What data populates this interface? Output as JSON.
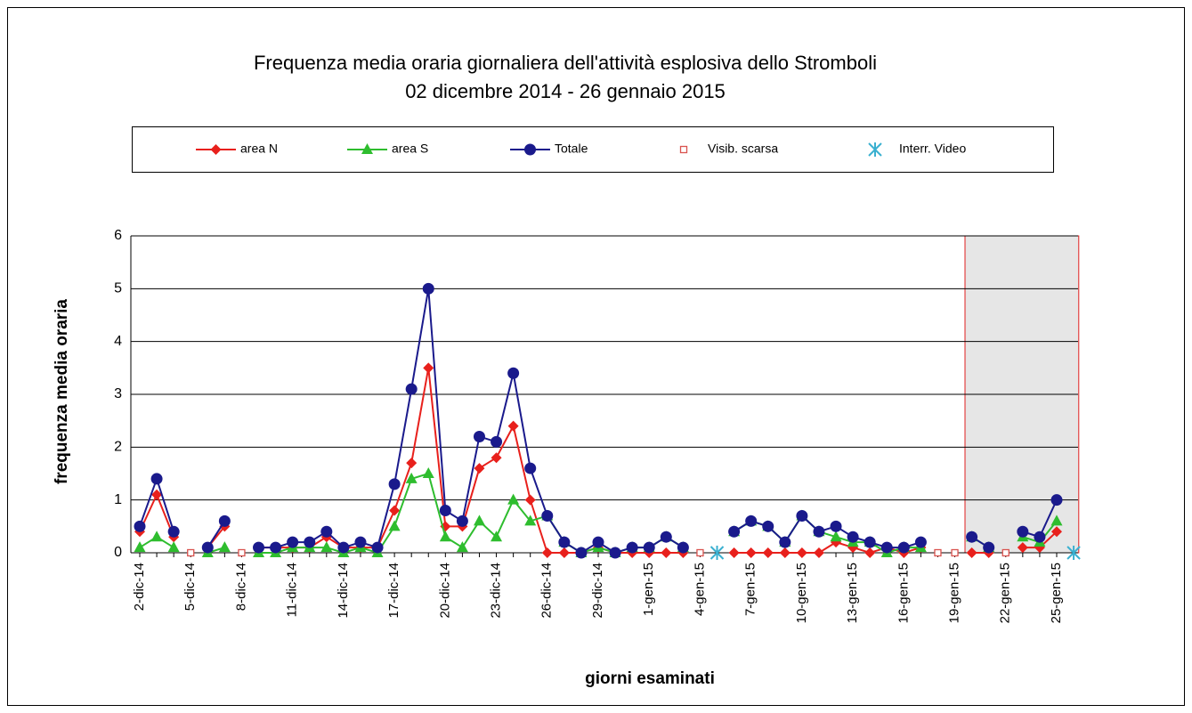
{
  "chart_data": {
    "type": "line",
    "title": "Frequenza media oraria giornaliera dell'attività esplosiva dello Stromboli",
    "subtitle": "02 dicembre 2014 - 26 gennaio 2015",
    "x_label": "giorni esaminati",
    "y_label": "frequenza media oraria",
    "categories": [
      "2-dic-14",
      null,
      null,
      "5-dic-14",
      null,
      null,
      "8-dic-14",
      null,
      null,
      "11-dic-14",
      null,
      null,
      "14-dic-14",
      null,
      null,
      "17-dic-14",
      null,
      null,
      "20-dic-14",
      null,
      null,
      "23-dic-14",
      null,
      null,
      "26-dic-14",
      null,
      null,
      "29-dic-14",
      null,
      null,
      "1-gen-15",
      null,
      null,
      "4-gen-15",
      null,
      null,
      "7-gen-15",
      null,
      null,
      "10-gen-15",
      null,
      null,
      "13-gen-15",
      null,
      null,
      "16-gen-15",
      null,
      null,
      "19-gen-15",
      null,
      null,
      "22-gen-15",
      null,
      null,
      "25-gen-15",
      null
    ],
    "ylim": [
      0,
      6
    ],
    "yticks": [
      0,
      1,
      2,
      3,
      4,
      5,
      6
    ],
    "grid": true,
    "shaded_x": [
      48.6,
      55.3
    ],
    "series": [
      {
        "name": "area N",
        "color": "#e8201c",
        "marker": "diamond",
        "line": true,
        "values": [
          0.4,
          1.1,
          0.3,
          null,
          0.1,
          0.5,
          null,
          0.1,
          0.1,
          0.1,
          0.1,
          0.3,
          0.1,
          0.1,
          0.1,
          0.8,
          1.7,
          3.5,
          0.5,
          0.5,
          1.6,
          1.8,
          2.4,
          1.0,
          0,
          0,
          0,
          0.1,
          0,
          0,
          0,
          0,
          0,
          null,
          null,
          0,
          0,
          0,
          0,
          0,
          0,
          0.2,
          0.1,
          0,
          0.1,
          0,
          0.1,
          null,
          null,
          0,
          0,
          null,
          0.1,
          0.1,
          0.4,
          null
        ]
      },
      {
        "name": "area S",
        "color": "#2ebd2e",
        "marker": "triangle",
        "line": true,
        "values": [
          0.1,
          0.3,
          0.1,
          null,
          0,
          0.1,
          null,
          0,
          0,
          0.1,
          0.1,
          0.1,
          0,
          0.1,
          0,
          0.5,
          1.4,
          1.5,
          0.3,
          0.1,
          0.6,
          0.3,
          1.0,
          0.6,
          0.7,
          0.2,
          0,
          0.1,
          0,
          0.1,
          0.1,
          0.3,
          0.1,
          null,
          null,
          0.4,
          0.6,
          0.5,
          0.2,
          0.7,
          0.4,
          0.3,
          0.2,
          0.2,
          0,
          0.1,
          0.1,
          null,
          null,
          0.3,
          0.1,
          null,
          0.3,
          0.2,
          0.6,
          null
        ]
      },
      {
        "name": "Totale",
        "color": "#1a1a8c",
        "marker": "circle",
        "line": true,
        "values": [
          0.5,
          1.4,
          0.4,
          null,
          0.1,
          0.6,
          null,
          0.1,
          0.1,
          0.2,
          0.2,
          0.4,
          0.1,
          0.2,
          0.1,
          1.3,
          3.1,
          5.0,
          0.8,
          0.6,
          2.2,
          2.1,
          3.4,
          1.6,
          0.7,
          0.2,
          0,
          0.2,
          0,
          0.1,
          0.1,
          0.3,
          0.1,
          null,
          null,
          0.4,
          0.6,
          0.5,
          0.2,
          0.7,
          0.4,
          0.5,
          0.3,
          0.2,
          0.1,
          0.1,
          0.2,
          null,
          null,
          0.3,
          0.1,
          null,
          0.4,
          0.3,
          1.0,
          null
        ]
      },
      {
        "name": "Visib. scarsa",
        "color": "#d9534f",
        "marker": "square",
        "line": false,
        "values": [
          null,
          null,
          null,
          0,
          null,
          null,
          0,
          null,
          null,
          null,
          null,
          null,
          null,
          null,
          null,
          null,
          null,
          null,
          null,
          null,
          null,
          null,
          null,
          null,
          null,
          null,
          null,
          null,
          null,
          null,
          null,
          null,
          null,
          0,
          null,
          null,
          null,
          null,
          null,
          null,
          null,
          null,
          null,
          null,
          null,
          null,
          null,
          0,
          0,
          null,
          null,
          0,
          null,
          null,
          null,
          null
        ]
      },
      {
        "name": "Interr. Video",
        "color": "#3ab0d0",
        "marker": "star",
        "line": false,
        "values": [
          null,
          null,
          null,
          null,
          null,
          null,
          null,
          null,
          null,
          null,
          null,
          null,
          null,
          null,
          null,
          null,
          null,
          null,
          null,
          null,
          null,
          null,
          null,
          null,
          null,
          null,
          null,
          null,
          null,
          null,
          null,
          null,
          null,
          null,
          0,
          null,
          null,
          null,
          null,
          null,
          null,
          null,
          null,
          null,
          null,
          null,
          null,
          null,
          null,
          null,
          null,
          null,
          null,
          null,
          null,
          0
        ]
      }
    ]
  }
}
